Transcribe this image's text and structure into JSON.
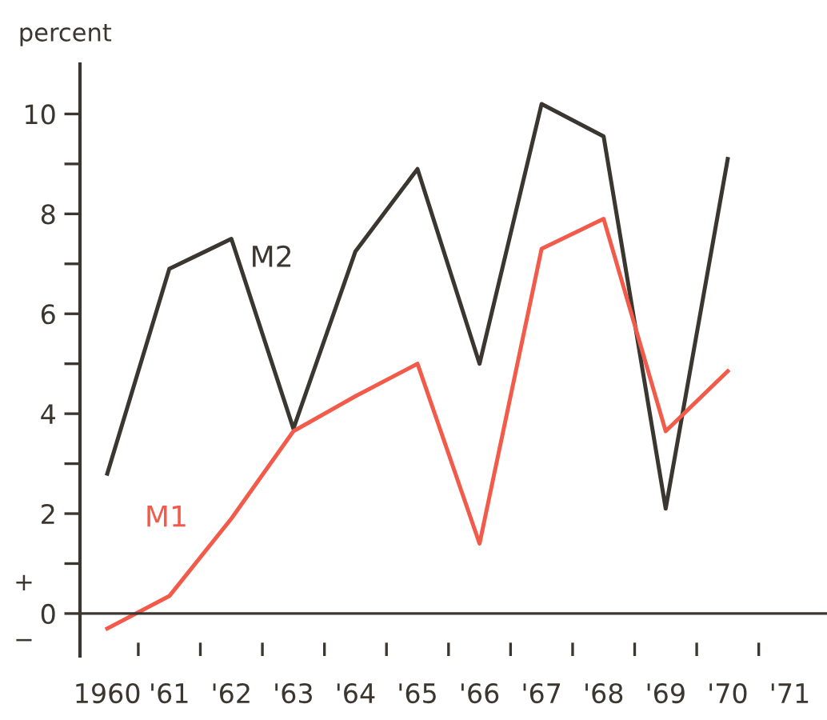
{
  "chart_data": {
    "type": "line",
    "ylabel": "percent",
    "categories": [
      "1960",
      "'61",
      "'62",
      "'63",
      "'64",
      "'65",
      "'66",
      "'67",
      "'68",
      "'69",
      "'70",
      "'71"
    ],
    "series": [
      {
        "name": "M2",
        "color": "#3b3630",
        "values": [
          2.8,
          6.9,
          7.5,
          3.7,
          7.25,
          8.9,
          5.0,
          10.2,
          9.55,
          2.1,
          9.1,
          null
        ]
      },
      {
        "name": "M1",
        "color": "#f25a4a",
        "values": [
          -0.3,
          0.35,
          1.9,
          3.65,
          4.35,
          5.0,
          1.4,
          7.3,
          7.9,
          3.65,
          4.85,
          null
        ]
      }
    ],
    "ylim": [
      -0.85,
      11
    ],
    "yticks": [
      0,
      {
        "value": 1,
        "label": null
      },
      2,
      {
        "value": 3,
        "label": null
      },
      4,
      {
        "value": 5,
        "label": null
      },
      6,
      {
        "value": 7,
        "label": null
      },
      8,
      {
        "value": 9,
        "label": null
      },
      10
    ],
    "ref_lines": [
      {
        "axis": "y",
        "value": 0,
        "label": null,
        "color": "#3b3630"
      }
    ],
    "annotations": [
      "+",
      "−"
    ],
    "grid": false,
    "legend": false,
    "marker": "none",
    "line_style": "solid"
  }
}
